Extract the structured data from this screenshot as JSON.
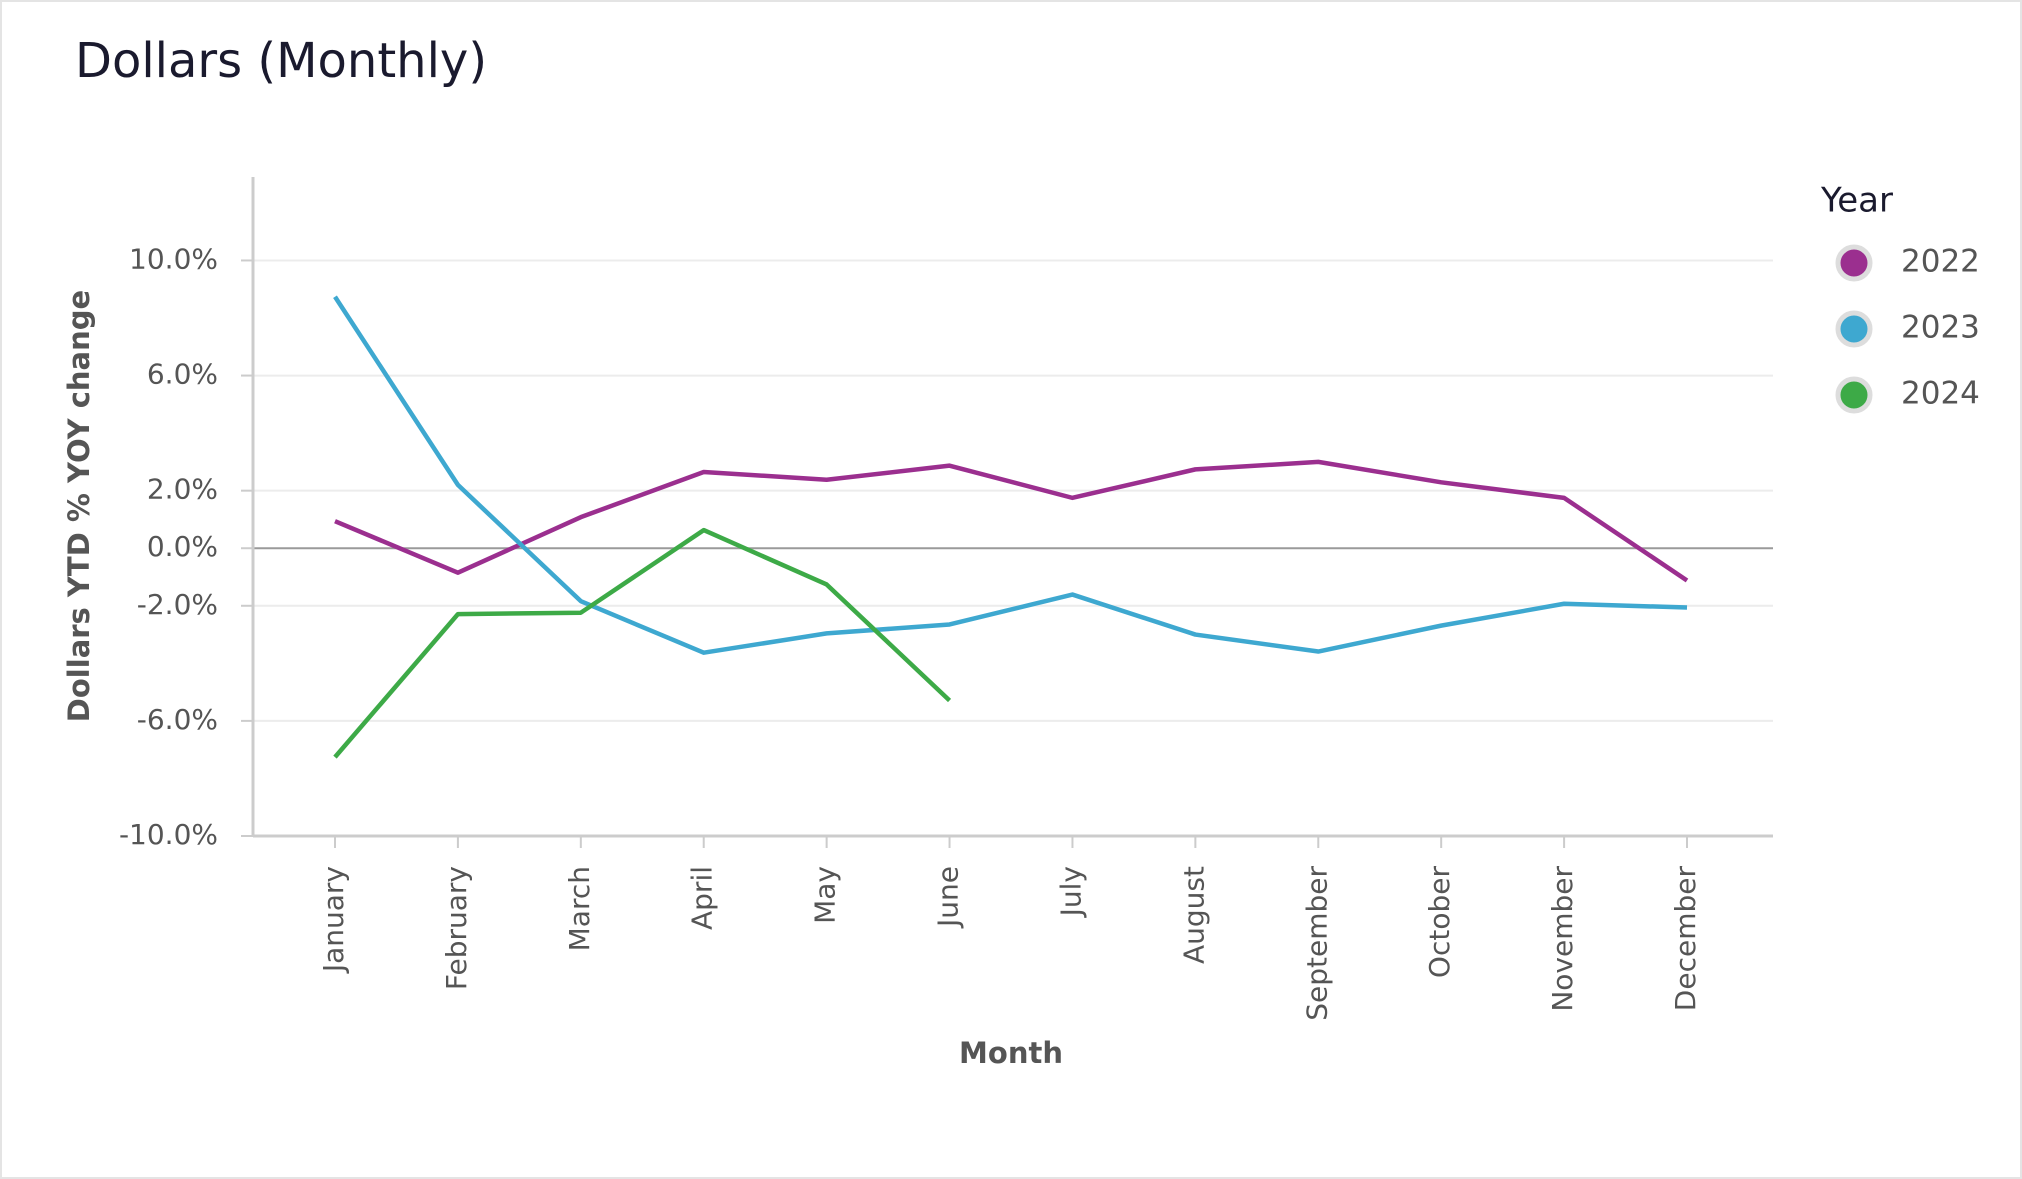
{
  "chart_data": {
    "type": "line",
    "title": "Dollars (Monthly)",
    "x_label": "Month",
    "y_label": "Dollars YTD % YOY change",
    "legend_title": "Year",
    "categories": [
      "January",
      "February",
      "March",
      "April",
      "May",
      "June",
      "July",
      "August",
      "September",
      "October",
      "November",
      "December"
    ],
    "series": [
      {
        "name": "2022",
        "color": "#9b2f8f",
        "values": [
          0.94,
          -0.85,
          1.08,
          2.65,
          2.38,
          2.87,
          1.75,
          2.74,
          3.0,
          2.29,
          1.75,
          -1.12
        ]
      },
      {
        "name": "2023",
        "color": "#3ea8d0",
        "values": [
          8.74,
          2.2,
          -1.84,
          -3.63,
          -2.96,
          -2.65,
          -1.61,
          -3.0,
          -3.59,
          -2.69,
          -1.93,
          -2.06
        ]
      },
      {
        "name": "2024",
        "color": "#3daa47",
        "values": [
          -7.26,
          -2.29,
          -2.24,
          0.63,
          -1.26,
          -5.29,
          null,
          null,
          null,
          null,
          null,
          null
        ]
      }
    ],
    "ylim": [
      -10,
      12.9
    ],
    "yticks": [
      {
        "value": 10,
        "label": "10.0%"
      },
      {
        "value": 6,
        "label": "6.0%"
      },
      {
        "value": 2,
        "label": "2.0%"
      },
      {
        "value": 0,
        "label": "0.0%"
      },
      {
        "value": -2,
        "label": "-2.0%"
      },
      {
        "value": -6,
        "label": "-6.0%"
      },
      {
        "value": -10,
        "label": "-10.0%"
      }
    ],
    "grid": true,
    "legend_position": "right"
  }
}
